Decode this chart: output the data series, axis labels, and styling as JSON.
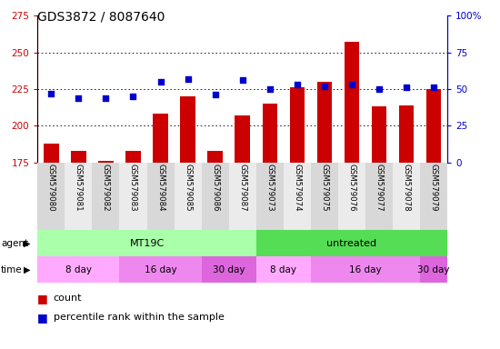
{
  "title": "GDS3872 / 8087640",
  "samples": [
    "GSM579080",
    "GSM579081",
    "GSM579082",
    "GSM579083",
    "GSM579084",
    "GSM579085",
    "GSM579086",
    "GSM579087",
    "GSM579073",
    "GSM579074",
    "GSM579075",
    "GSM579076",
    "GSM579077",
    "GSM579078",
    "GSM579079"
  ],
  "counts": [
    188,
    183,
    176,
    183,
    208,
    220,
    183,
    207,
    215,
    226,
    230,
    257,
    213,
    214,
    225
  ],
  "percentiles": [
    47,
    44,
    44,
    45,
    55,
    57,
    46,
    56,
    50,
    53,
    52,
    53,
    50,
    51,
    51
  ],
  "ylim_left": [
    175,
    275
  ],
  "ylim_right": [
    0,
    100
  ],
  "yticks_left": [
    175,
    200,
    225,
    250,
    275
  ],
  "yticks_right": [
    0,
    25,
    50,
    75,
    100
  ],
  "bar_color": "#cc0000",
  "dot_color": "#0000cc",
  "bg_color": "#ffffff",
  "agent_label": "agent",
  "time_label": "time",
  "agent_groups": [
    {
      "label": "MT19C",
      "start": 0,
      "end": 8,
      "color": "#aaffaa"
    },
    {
      "label": "untreated",
      "start": 8,
      "end": 15,
      "color": "#55dd55"
    }
  ],
  "time_groups": [
    {
      "label": "8 day",
      "start": 0,
      "end": 3,
      "color": "#ffaaff"
    },
    {
      "label": "16 day",
      "start": 3,
      "end": 6,
      "color": "#ee88ee"
    },
    {
      "label": "30 day",
      "start": 6,
      "end": 8,
      "color": "#dd66dd"
    },
    {
      "label": "8 day",
      "start": 8,
      "end": 10,
      "color": "#ffaaff"
    },
    {
      "label": "16 day",
      "start": 10,
      "end": 14,
      "color": "#ee88ee"
    },
    {
      "label": "30 day",
      "start": 14,
      "end": 15,
      "color": "#dd66dd"
    }
  ],
  "tick_label_color_left": "#cc0000",
  "tick_label_color_right": "#0000cc",
  "legend_count_color": "#cc0000",
  "legend_pct_color": "#0000cc",
  "col_bg_even": "#d8d8d8",
  "col_bg_odd": "#ebebeb"
}
